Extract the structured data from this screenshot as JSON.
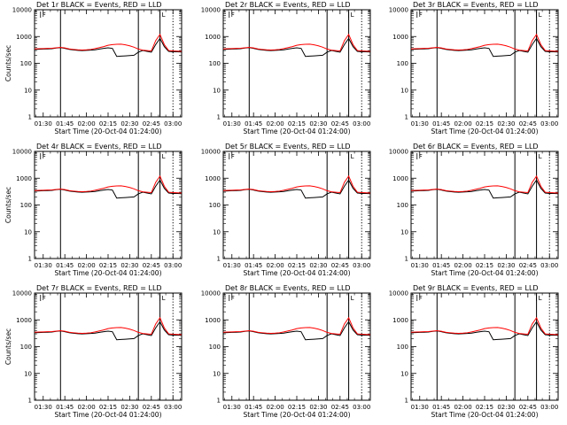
{
  "chart_data": {
    "type": "line",
    "yscale": "log",
    "ylim": [
      1,
      10000
    ],
    "xlim": [
      "01:24:00",
      "03:06:00"
    ],
    "xtick_labels": [
      "01:30",
      "01:45",
      "02:00",
      "02:15",
      "02:30",
      "02:45",
      "03:00"
    ],
    "ytick_labels": [
      "1",
      "10",
      "100",
      "1000",
      "10000"
    ],
    "ylabel": "Counts/sec",
    "xlabel": "Start Time (20-Oct-04 01:24:00)",
    "colors": {
      "events": "#000000",
      "lld": "#ff0000"
    },
    "time_x": [
      "01:24",
      "01:27",
      "01:30",
      "01:33",
      "01:36",
      "01:39",
      "01:42",
      "01:45",
      "01:48",
      "01:51",
      "01:54",
      "01:57",
      "02:00",
      "02:03",
      "02:06",
      "02:09",
      "02:12",
      "02:15",
      "02:18",
      "02:21",
      "02:24",
      "02:27",
      "02:30",
      "02:33",
      "02:36",
      "02:39",
      "02:42",
      "02:45",
      "02:48",
      "02:51",
      "02:54",
      "02:57",
      "03:00",
      "03:03",
      "03:06"
    ],
    "vertical_markers": [
      "01:42",
      "02:36",
      "02:51"
    ],
    "marker_labels": [
      "F",
      "L"
    ],
    "panels": [
      {
        "title": "Det 1r  BLACK = Events, RED = LLD",
        "series": [
          {
            "values": [
              330,
              335,
              340,
              345,
              352,
              370,
              385,
              360,
              330,
              315,
              305,
              300,
              305,
              310,
              320,
              340,
              360,
              380,
              360,
              180,
              185,
              190,
              195,
              200,
              260,
              300,
              280,
              260,
              500,
              850,
              420,
              280,
              270,
              268,
              265
            ]
          },
          {
            "values": [
              345,
              350,
              355,
              360,
              365,
              380,
              395,
              375,
              345,
              330,
              318,
              312,
              318,
              330,
              355,
              385,
              420,
              470,
              500,
              515,
              520,
              490,
              450,
              400,
              340,
              310,
              300,
              290,
              700,
              1200,
              500,
              300,
              290,
              285,
              280
            ]
          }
        ]
      },
      {
        "title": "Det 2r  BLACK = Events, RED = LLD",
        "series": [
          {
            "values": [
              330,
              335,
              340,
              345,
              352,
              370,
              385,
              360,
              330,
              315,
              305,
              300,
              305,
              310,
              320,
              340,
              360,
              380,
              360,
              180,
              185,
              190,
              195,
              200,
              260,
              300,
              280,
              260,
              500,
              850,
              420,
              280,
              270,
              268,
              265
            ]
          },
          {
            "values": [
              345,
              350,
              355,
              360,
              365,
              380,
              395,
              375,
              345,
              330,
              318,
              312,
              318,
              330,
              355,
              385,
              420,
              470,
              500,
              515,
              520,
              490,
              450,
              400,
              340,
              310,
              300,
              290,
              700,
              1200,
              500,
              300,
              290,
              285,
              280
            ]
          }
        ]
      },
      {
        "title": "Det 3r  BLACK = Events, RED = LLD",
        "series": [
          {
            "values": [
              330,
              335,
              340,
              345,
              352,
              370,
              385,
              360,
              330,
              315,
              305,
              300,
              305,
              310,
              320,
              340,
              360,
              380,
              360,
              180,
              185,
              190,
              195,
              200,
              260,
              300,
              280,
              260,
              500,
              850,
              420,
              280,
              270,
              268,
              265
            ]
          },
          {
            "values": [
              345,
              350,
              355,
              360,
              365,
              380,
              395,
              375,
              345,
              330,
              318,
              312,
              318,
              330,
              355,
              385,
              420,
              470,
              500,
              515,
              520,
              490,
              450,
              400,
              340,
              310,
              300,
              290,
              700,
              1200,
              500,
              300,
              290,
              285,
              280
            ]
          }
        ]
      },
      {
        "title": "Det 4r  BLACK = Events, RED = LLD",
        "series": [
          {
            "values": [
              330,
              335,
              340,
              345,
              352,
              370,
              385,
              360,
              330,
              315,
              305,
              300,
              305,
              310,
              320,
              340,
              360,
              380,
              360,
              180,
              185,
              190,
              195,
              200,
              260,
              300,
              280,
              260,
              500,
              850,
              420,
              280,
              270,
              268,
              265
            ]
          },
          {
            "values": [
              345,
              350,
              355,
              360,
              365,
              380,
              395,
              375,
              345,
              330,
              318,
              312,
              318,
              330,
              355,
              385,
              420,
              470,
              500,
              515,
              520,
              490,
              450,
              400,
              340,
              310,
              300,
              290,
              700,
              1200,
              500,
              300,
              290,
              285,
              280
            ]
          }
        ]
      },
      {
        "title": "Det 5r  BLACK = Events, RED = LLD",
        "series": [
          {
            "values": [
              330,
              335,
              340,
              345,
              352,
              370,
              385,
              360,
              330,
              315,
              305,
              300,
              305,
              310,
              320,
              340,
              360,
              380,
              360,
              180,
              185,
              190,
              195,
              200,
              260,
              300,
              280,
              260,
              500,
              850,
              420,
              280,
              270,
              268,
              265
            ]
          },
          {
            "values": [
              345,
              350,
              355,
              360,
              365,
              380,
              395,
              375,
              345,
              330,
              318,
              312,
              318,
              330,
              355,
              385,
              420,
              470,
              500,
              515,
              520,
              490,
              450,
              400,
              340,
              310,
              300,
              290,
              700,
              1200,
              500,
              300,
              290,
              285,
              280
            ]
          }
        ]
      },
      {
        "title": "Det 6r  BLACK = Events, RED = LLD",
        "series": [
          {
            "values": [
              330,
              335,
              340,
              345,
              352,
              370,
              385,
              360,
              330,
              315,
              305,
              300,
              305,
              310,
              320,
              340,
              360,
              380,
              360,
              180,
              185,
              190,
              195,
              200,
              260,
              300,
              280,
              260,
              500,
              850,
              420,
              280,
              270,
              268,
              265
            ]
          },
          {
            "values": [
              345,
              350,
              355,
              360,
              365,
              380,
              395,
              375,
              345,
              330,
              318,
              312,
              318,
              330,
              355,
              385,
              420,
              470,
              500,
              515,
              520,
              490,
              450,
              400,
              340,
              310,
              300,
              290,
              700,
              1200,
              500,
              300,
              290,
              285,
              280
            ]
          }
        ]
      },
      {
        "title": "Det 7r  BLACK = Events, RED = LLD",
        "series": [
          {
            "values": [
              330,
              335,
              340,
              345,
              352,
              370,
              385,
              360,
              330,
              315,
              305,
              300,
              305,
              310,
              320,
              340,
              360,
              380,
              360,
              180,
              185,
              190,
              195,
              200,
              260,
              300,
              280,
              260,
              500,
              850,
              420,
              280,
              270,
              268,
              265
            ]
          },
          {
            "values": [
              345,
              350,
              355,
              360,
              365,
              380,
              395,
              375,
              345,
              330,
              318,
              312,
              318,
              330,
              355,
              385,
              420,
              470,
              500,
              515,
              520,
              490,
              450,
              400,
              340,
              310,
              300,
              290,
              700,
              1200,
              500,
              300,
              290,
              285,
              280
            ]
          }
        ]
      },
      {
        "title": "Det 8r  BLACK = Events, RED = LLD",
        "series": [
          {
            "values": [
              330,
              335,
              340,
              345,
              352,
              370,
              385,
              360,
              330,
              315,
              305,
              300,
              305,
              310,
              320,
              340,
              360,
              380,
              360,
              180,
              185,
              190,
              195,
              200,
              260,
              300,
              280,
              260,
              500,
              850,
              420,
              280,
              270,
              268,
              265
            ]
          },
          {
            "values": [
              345,
              350,
              355,
              360,
              365,
              380,
              395,
              375,
              345,
              330,
              318,
              312,
              318,
              330,
              355,
              385,
              420,
              470,
              500,
              515,
              520,
              490,
              450,
              400,
              340,
              310,
              300,
              290,
              700,
              1200,
              500,
              300,
              290,
              285,
              280
            ]
          }
        ]
      },
      {
        "title": "Det 9r  BLACK = Events, RED = LLD",
        "series": [
          {
            "values": [
              330,
              335,
              340,
              345,
              352,
              370,
              385,
              360,
              330,
              315,
              305,
              300,
              305,
              310,
              320,
              340,
              360,
              380,
              360,
              180,
              185,
              190,
              195,
              200,
              260,
              300,
              280,
              260,
              500,
              850,
              420,
              280,
              270,
              268,
              265
            ]
          },
          {
            "values": [
              345,
              350,
              355,
              360,
              365,
              380,
              395,
              375,
              345,
              330,
              318,
              312,
              318,
              330,
              355,
              385,
              420,
              470,
              500,
              515,
              520,
              490,
              450,
              400,
              340,
              310,
              300,
              290,
              700,
              1200,
              500,
              300,
              290,
              285,
              280
            ]
          }
        ]
      }
    ]
  }
}
